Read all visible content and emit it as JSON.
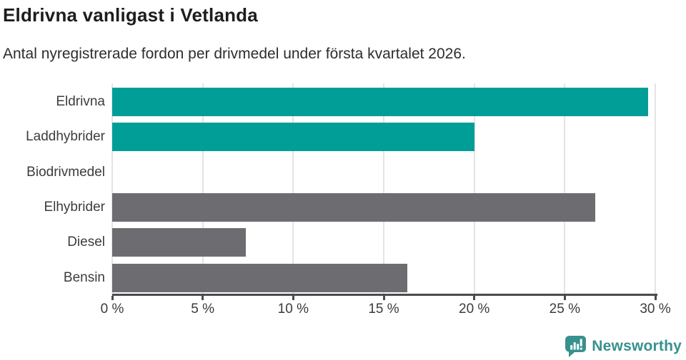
{
  "title": "Eldrivna vanligast i Vetlanda",
  "subtitle": "Antal nyregistrerade fordon per drivmedel under första kvartalet 2026.",
  "chart_data": {
    "type": "bar",
    "orientation": "horizontal",
    "categories": [
      "Eldrivna",
      "Laddhybrider",
      "Biodrivmedel",
      "Elhybrider",
      "Diesel",
      "Bensin"
    ],
    "values": [
      29.6,
      20.0,
      0.0,
      26.7,
      7.4,
      16.3
    ],
    "value_unit": "%",
    "bar_colors": [
      "#009e97",
      "#009e97",
      "#009e97",
      "#6d6d71",
      "#6d6d71",
      "#6d6d71"
    ],
    "title": "Eldrivna vanligast i Vetlanda",
    "xlabel": "",
    "ylabel": "",
    "xlim": [
      0,
      30
    ],
    "x_ticks": [
      0,
      5,
      10,
      15,
      20,
      25,
      30
    ],
    "x_tick_labels": [
      "0 %",
      "5 %",
      "10 %",
      "15 %",
      "20 %",
      "25 %",
      "30 %"
    ],
    "grid": "vertical-only",
    "legend": "none"
  },
  "colors": {
    "accent_teal": "#009e97",
    "neutral_gray": "#6d6d71",
    "gridline": "#e4e4e6",
    "axis": "#4b4b4d",
    "title_text": "#1d1d1b",
    "body_text": "#2d2d2b",
    "brand_teal": "#37918e",
    "background": "#ffffff"
  },
  "footer": {
    "brand_label": "Newsworthy"
  }
}
